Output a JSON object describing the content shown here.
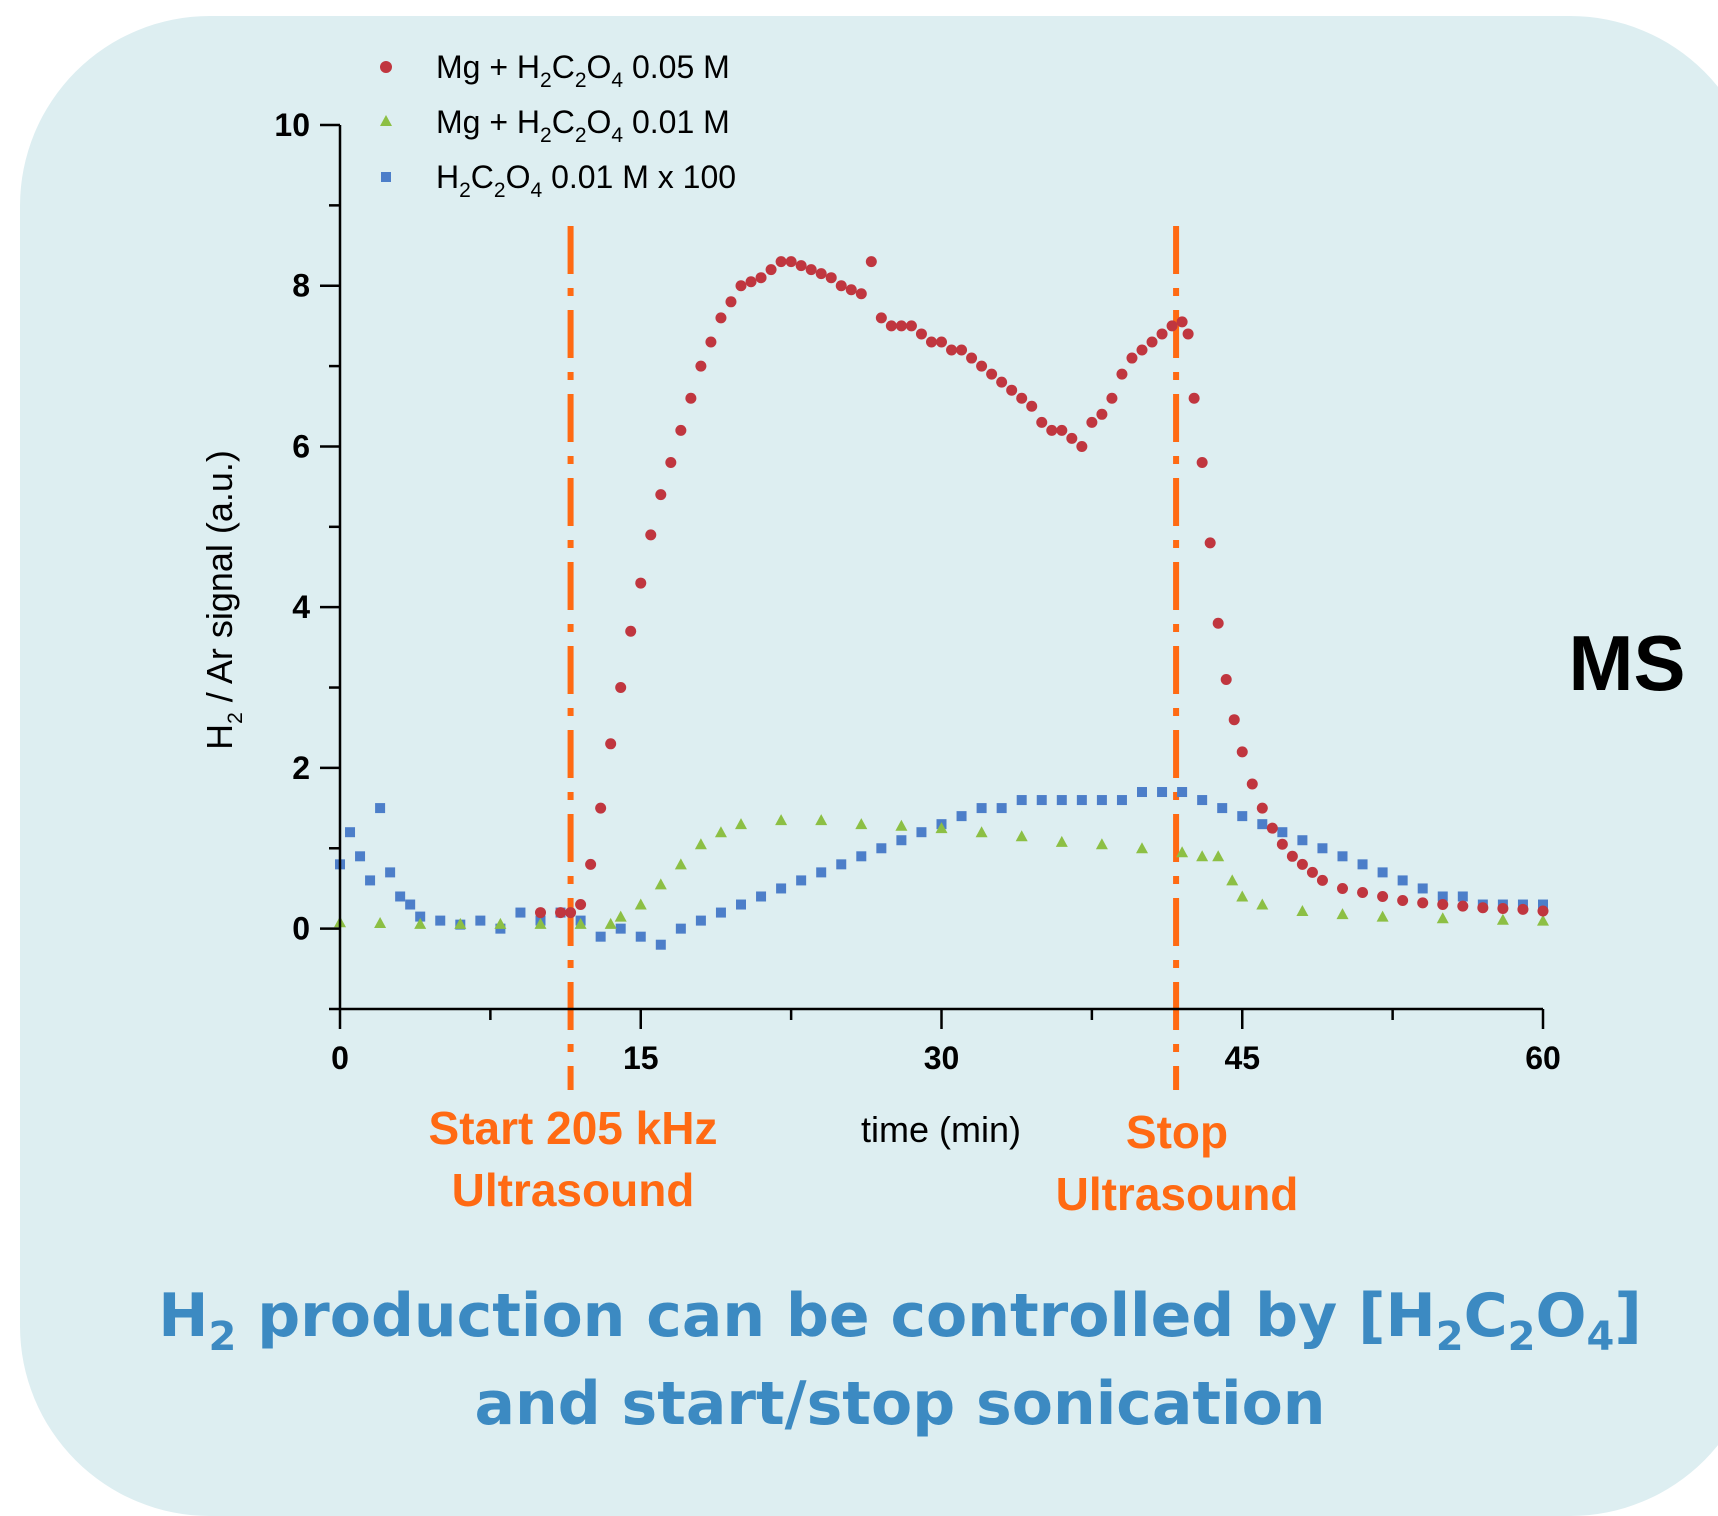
{
  "colors": {
    "background": "#ddeef1",
    "series_red": "#c0363f",
    "series_green": "#8cbf44",
    "series_blue": "#4c7ec9",
    "marker_lines": "#ff6a13",
    "caption": "#3c8ac2"
  },
  "side_label": "MS",
  "caption": {
    "line1_a": "H",
    "line1_sub1": "2",
    "line1_b": " production can be controlled by [H",
    "line1_sub2": "2",
    "line1_c": "C",
    "line1_sub3": "2",
    "line1_d": "O",
    "line1_sub4": "4",
    "line1_e": "]",
    "line2": "and start/stop sonication"
  },
  "annotations": {
    "start_line1": "Start 205 kHz",
    "start_line2": "Ultrasound",
    "stop_line1": "Stop",
    "stop_line2": "Ultrasound",
    "start_x": 11.5,
    "stop_x": 41.7
  },
  "legend": [
    {
      "marker": "circle",
      "pre": "Mg + H",
      "s1": "2",
      "m1": "C",
      "s2": "2",
      "m2": "O",
      "s3": "4",
      "post": " 0.05 M"
    },
    {
      "marker": "triangle",
      "pre": "Mg + H",
      "s1": "2",
      "m1": "C",
      "s2": "2",
      "m2": "O",
      "s3": "4",
      "post": " 0.01 M"
    },
    {
      "marker": "square",
      "pre": "H",
      "s1": "2",
      "m1": "C",
      "s2": "2",
      "m2": "O",
      "s3": "4",
      "post": " 0.01 M x 100"
    }
  ],
  "chart_data": {
    "type": "scatter",
    "xlabel": "time (min)",
    "ylabel_pre": "H",
    "ylabel_sub": "2",
    "ylabel_post": " / Ar signal (a.u.)",
    "xlim": [
      0,
      60
    ],
    "ylim": [
      -1,
      10
    ],
    "xticks": [
      0,
      15,
      30,
      45,
      60
    ],
    "yticks": [
      0,
      2,
      4,
      6,
      8,
      10
    ],
    "grid": false,
    "legend_position": "top-left",
    "series": [
      {
        "name": "Mg + H2C2O4 0.05 M",
        "marker": "circle",
        "points": [
          [
            10,
            0.2
          ],
          [
            11,
            0.2
          ],
          [
            11.5,
            0.2
          ],
          [
            12,
            0.3
          ],
          [
            12.5,
            0.8
          ],
          [
            13,
            1.5
          ],
          [
            13.5,
            2.3
          ],
          [
            14,
            3.0
          ],
          [
            14.5,
            3.7
          ],
          [
            15,
            4.3
          ],
          [
            15.5,
            4.9
          ],
          [
            16,
            5.4
          ],
          [
            16.5,
            5.8
          ],
          [
            17,
            6.2
          ],
          [
            17.5,
            6.6
          ],
          [
            18,
            7.0
          ],
          [
            18.5,
            7.3
          ],
          [
            19,
            7.6
          ],
          [
            19.5,
            7.8
          ],
          [
            20,
            8.0
          ],
          [
            20.5,
            8.05
          ],
          [
            21,
            8.1
          ],
          [
            21.5,
            8.2
          ],
          [
            22,
            8.3
          ],
          [
            22.5,
            8.3
          ],
          [
            23,
            8.25
          ],
          [
            23.5,
            8.2
          ],
          [
            24,
            8.15
          ],
          [
            24.5,
            8.1
          ],
          [
            25,
            8.0
          ],
          [
            25.5,
            7.95
          ],
          [
            26,
            7.9
          ],
          [
            26.5,
            8.3
          ],
          [
            27,
            7.6
          ],
          [
            27.5,
            7.5
          ],
          [
            28,
            7.5
          ],
          [
            28.5,
            7.5
          ],
          [
            29,
            7.4
          ],
          [
            29.5,
            7.3
          ],
          [
            30,
            7.3
          ],
          [
            30.5,
            7.2
          ],
          [
            31,
            7.2
          ],
          [
            31.5,
            7.1
          ],
          [
            32,
            7.0
          ],
          [
            32.5,
            6.9
          ],
          [
            33,
            6.8
          ],
          [
            33.5,
            6.7
          ],
          [
            34,
            6.6
          ],
          [
            34.5,
            6.5
          ],
          [
            35,
            6.3
          ],
          [
            35.5,
            6.2
          ],
          [
            36,
            6.2
          ],
          [
            36.5,
            6.1
          ],
          [
            37,
            6.0
          ],
          [
            37.5,
            6.3
          ],
          [
            38,
            6.4
          ],
          [
            38.5,
            6.6
          ],
          [
            39,
            6.9
          ],
          [
            39.5,
            7.1
          ],
          [
            40,
            7.2
          ],
          [
            40.5,
            7.3
          ],
          [
            41,
            7.4
          ],
          [
            41.5,
            7.5
          ],
          [
            42,
            7.55
          ],
          [
            42.3,
            7.4
          ],
          [
            42.6,
            6.6
          ],
          [
            43,
            5.8
          ],
          [
            43.4,
            4.8
          ],
          [
            43.8,
            3.8
          ],
          [
            44.2,
            3.1
          ],
          [
            44.6,
            2.6
          ],
          [
            45,
            2.2
          ],
          [
            45.5,
            1.8
          ],
          [
            46,
            1.5
          ],
          [
            46.5,
            1.25
          ],
          [
            47,
            1.05
          ],
          [
            47.5,
            0.9
          ],
          [
            48,
            0.8
          ],
          [
            48.5,
            0.7
          ],
          [
            49,
            0.6
          ],
          [
            50,
            0.5
          ],
          [
            51,
            0.45
          ],
          [
            52,
            0.4
          ],
          [
            53,
            0.35
          ],
          [
            54,
            0.32
          ],
          [
            55,
            0.3
          ],
          [
            56,
            0.28
          ],
          [
            57,
            0.26
          ],
          [
            58,
            0.25
          ],
          [
            59,
            0.24
          ],
          [
            60,
            0.22
          ]
        ]
      },
      {
        "name": "Mg + H2C2O4 0.01 M",
        "marker": "triangle",
        "points": [
          [
            0,
            0.08
          ],
          [
            2,
            0.07
          ],
          [
            4,
            0.06
          ],
          [
            6,
            0.06
          ],
          [
            8,
            0.06
          ],
          [
            10,
            0.06
          ],
          [
            12,
            0.06
          ],
          [
            13.5,
            0.06
          ],
          [
            14,
            0.15
          ],
          [
            15,
            0.3
          ],
          [
            16,
            0.55
          ],
          [
            17,
            0.8
          ],
          [
            18,
            1.05
          ],
          [
            19,
            1.2
          ],
          [
            20,
            1.3
          ],
          [
            22,
            1.35
          ],
          [
            24,
            1.35
          ],
          [
            26,
            1.3
          ],
          [
            28,
            1.28
          ],
          [
            30,
            1.25
          ],
          [
            32,
            1.2
          ],
          [
            34,
            1.15
          ],
          [
            36,
            1.08
          ],
          [
            38,
            1.05
          ],
          [
            40,
            1.0
          ],
          [
            42,
            0.95
          ],
          [
            43,
            0.9
          ],
          [
            43.8,
            0.9
          ],
          [
            44.5,
            0.6
          ],
          [
            45,
            0.4
          ],
          [
            46,
            0.3
          ],
          [
            48,
            0.22
          ],
          [
            50,
            0.18
          ],
          [
            52,
            0.15
          ],
          [
            55,
            0.13
          ],
          [
            58,
            0.11
          ],
          [
            60,
            0.1
          ]
        ]
      },
      {
        "name": "H2C2O4 0.01 M x 100",
        "marker": "square",
        "points": [
          [
            0,
            0.8
          ],
          [
            0.5,
            1.2
          ],
          [
            1,
            0.9
          ],
          [
            1.5,
            0.6
          ],
          [
            2,
            1.5
          ],
          [
            2.5,
            0.7
          ],
          [
            3,
            0.4
          ],
          [
            3.5,
            0.3
          ],
          [
            4,
            0.15
          ],
          [
            5,
            0.1
          ],
          [
            6,
            0.05
          ],
          [
            7,
            0.1
          ],
          [
            8,
            0.0
          ],
          [
            9,
            0.2
          ],
          [
            10,
            0.1
          ],
          [
            11,
            0.2
          ],
          [
            12,
            0.1
          ],
          [
            13,
            -0.1
          ],
          [
            14,
            0.0
          ],
          [
            15,
            -0.1
          ],
          [
            16,
            -0.2
          ],
          [
            17,
            0.0
          ],
          [
            18,
            0.1
          ],
          [
            19,
            0.2
          ],
          [
            20,
            0.3
          ],
          [
            21,
            0.4
          ],
          [
            22,
            0.5
          ],
          [
            23,
            0.6
          ],
          [
            24,
            0.7
          ],
          [
            25,
            0.8
          ],
          [
            26,
            0.9
          ],
          [
            27,
            1.0
          ],
          [
            28,
            1.1
          ],
          [
            29,
            1.2
          ],
          [
            30,
            1.3
          ],
          [
            31,
            1.4
          ],
          [
            32,
            1.5
          ],
          [
            33,
            1.5
          ],
          [
            34,
            1.6
          ],
          [
            35,
            1.6
          ],
          [
            36,
            1.6
          ],
          [
            37,
            1.6
          ],
          [
            38,
            1.6
          ],
          [
            39,
            1.6
          ],
          [
            40,
            1.7
          ],
          [
            41,
            1.7
          ],
          [
            42,
            1.7
          ],
          [
            43,
            1.6
          ],
          [
            44,
            1.5
          ],
          [
            45,
            1.4
          ],
          [
            46,
            1.3
          ],
          [
            47,
            1.2
          ],
          [
            48,
            1.1
          ],
          [
            49,
            1.0
          ],
          [
            50,
            0.9
          ],
          [
            51,
            0.8
          ],
          [
            52,
            0.7
          ],
          [
            53,
            0.6
          ],
          [
            54,
            0.5
          ],
          [
            55,
            0.4
          ],
          [
            56,
            0.4
          ],
          [
            57,
            0.3
          ],
          [
            58,
            0.3
          ],
          [
            59,
            0.3
          ],
          [
            60,
            0.3
          ]
        ]
      }
    ]
  }
}
